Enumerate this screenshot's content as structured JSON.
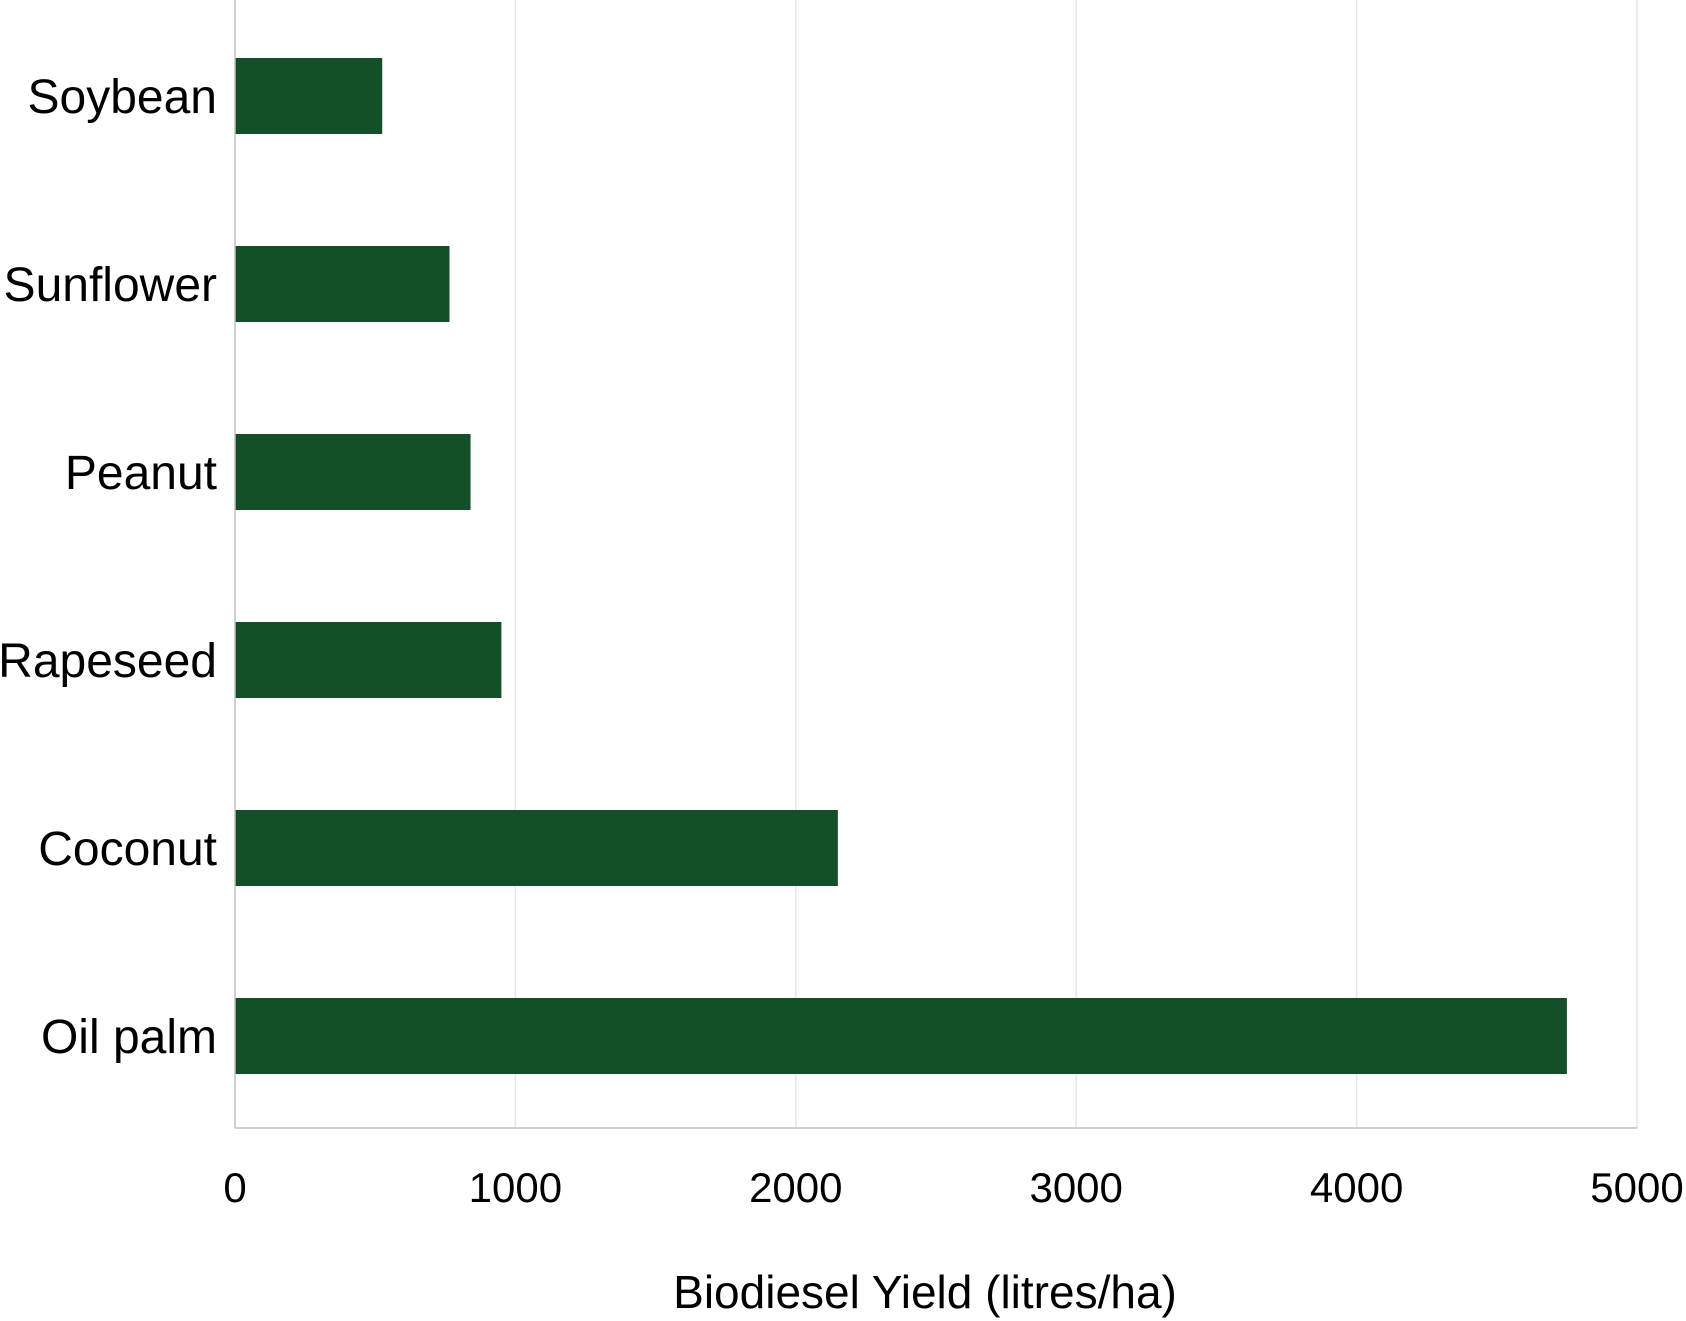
{
  "chart_data": {
    "type": "bar",
    "orientation": "horizontal",
    "categories": [
      "Soybean",
      "Sunflower",
      "Peanut",
      "Rapeseed",
      "Coconut",
      "Oil palm"
    ],
    "values": [
      525,
      765,
      840,
      950,
      2150,
      4750
    ],
    "xlabel": "Biodiesel Yield (litres/ha)",
    "ylabel": "",
    "xlim": [
      0,
      5000
    ],
    "x_ticks": [
      "0",
      "1000",
      "2000",
      "3000",
      "4000",
      "5000"
    ],
    "grid": "vertical",
    "legend": "none",
    "colors": {
      "bar": "#134f29",
      "grid": "#e6e6e6",
      "axis": "#bfbfbf"
    }
  }
}
